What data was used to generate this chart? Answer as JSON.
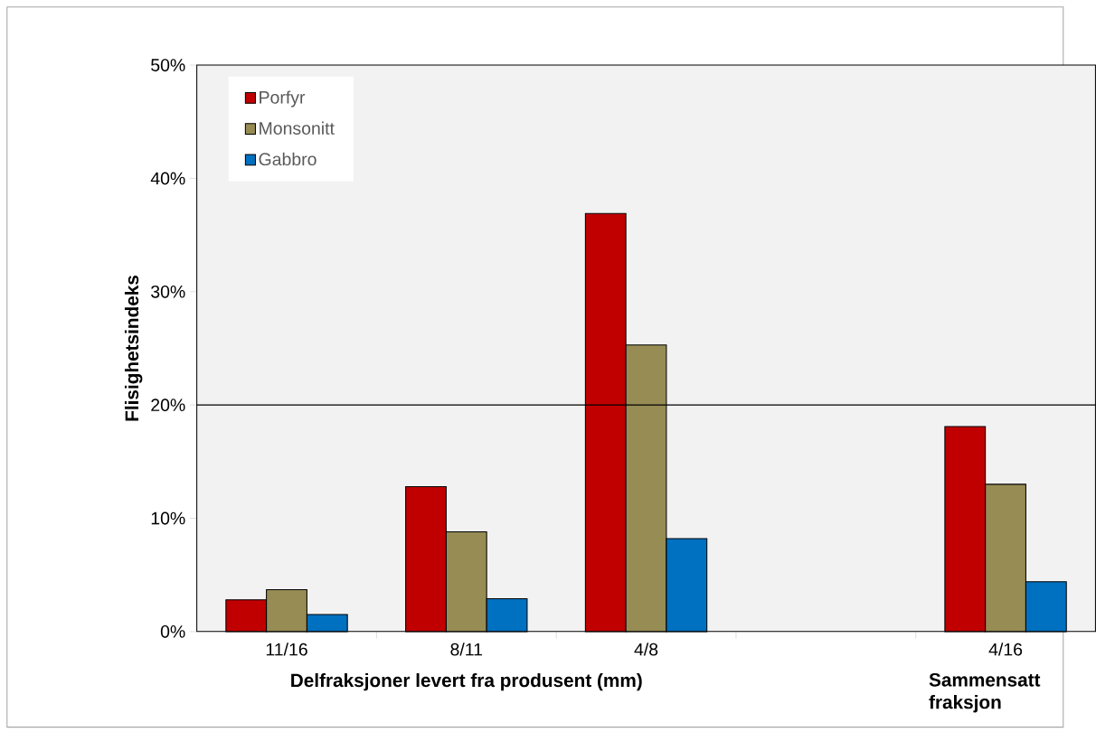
{
  "chart_data": {
    "type": "bar",
    "categories": [
      "11/16",
      "8/11",
      "4/8",
      null,
      "4/16"
    ],
    "series": [
      {
        "name": "Porfyr",
        "color": "#c00000",
        "values": [
          2.8,
          12.8,
          36.9,
          null,
          18.1
        ]
      },
      {
        "name": "Monsonitt",
        "color": "#968c54",
        "values": [
          3.7,
          8.8,
          25.3,
          null,
          13.0
        ]
      },
      {
        "name": "Gabbro",
        "color": "#0070c0",
        "values": [
          1.5,
          2.9,
          8.2,
          null,
          4.4
        ]
      }
    ],
    "xlabel": "Delfraksjoner levert fra produsent (mm)",
    "ylabel": "Flisighetsindeks",
    "annotations": [
      "Sammensatt fraksjon"
    ],
    "ylim": [
      0,
      50
    ],
    "yticks": [
      {
        "value": 0,
        "label": "0%"
      },
      {
        "value": 10,
        "label": "10%"
      },
      {
        "value": 20,
        "label": "20%"
      },
      {
        "value": 30,
        "label": "30%"
      },
      {
        "value": 40,
        "label": "40%"
      },
      {
        "value": 50,
        "label": "50%"
      }
    ],
    "ref_lines": [
      {
        "axis": "y",
        "value": 20,
        "color": "#000000"
      }
    ],
    "grid": false,
    "legend": "top left"
  }
}
